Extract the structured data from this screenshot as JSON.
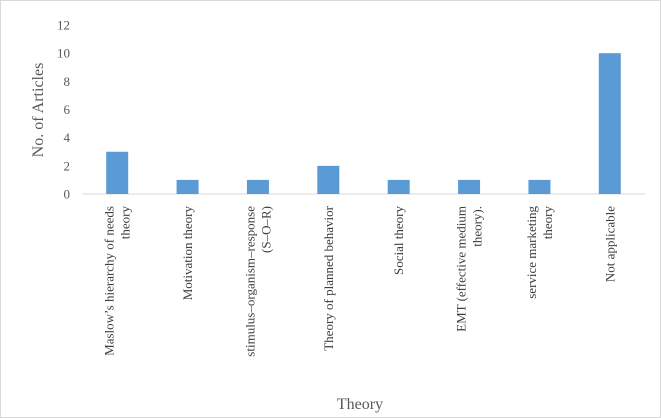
{
  "chart_data": {
    "type": "bar",
    "title": "",
    "xlabel": "Theory",
    "ylabel": "No. of Articles",
    "ylim": [
      0,
      12
    ],
    "yticks": [
      0,
      2,
      4,
      6,
      8,
      10,
      12
    ],
    "grid": false,
    "legend": "none",
    "bar_color": "#5b9bd5",
    "categories": [
      [
        "Maslow’s hierarchy of needs",
        "theory"
      ],
      [
        "Motivation theory"
      ],
      [
        "stimulus–organism–response",
        "(S–O–R)"
      ],
      [
        "Theory of planned behavior"
      ],
      [
        "Social theory"
      ],
      [
        "EMT (effective medium",
        "theory)."
      ],
      [
        "service marketing",
        "theory"
      ],
      [
        "Not applicable"
      ]
    ],
    "values": [
      3,
      1,
      1,
      2,
      1,
      1,
      1,
      10
    ]
  }
}
